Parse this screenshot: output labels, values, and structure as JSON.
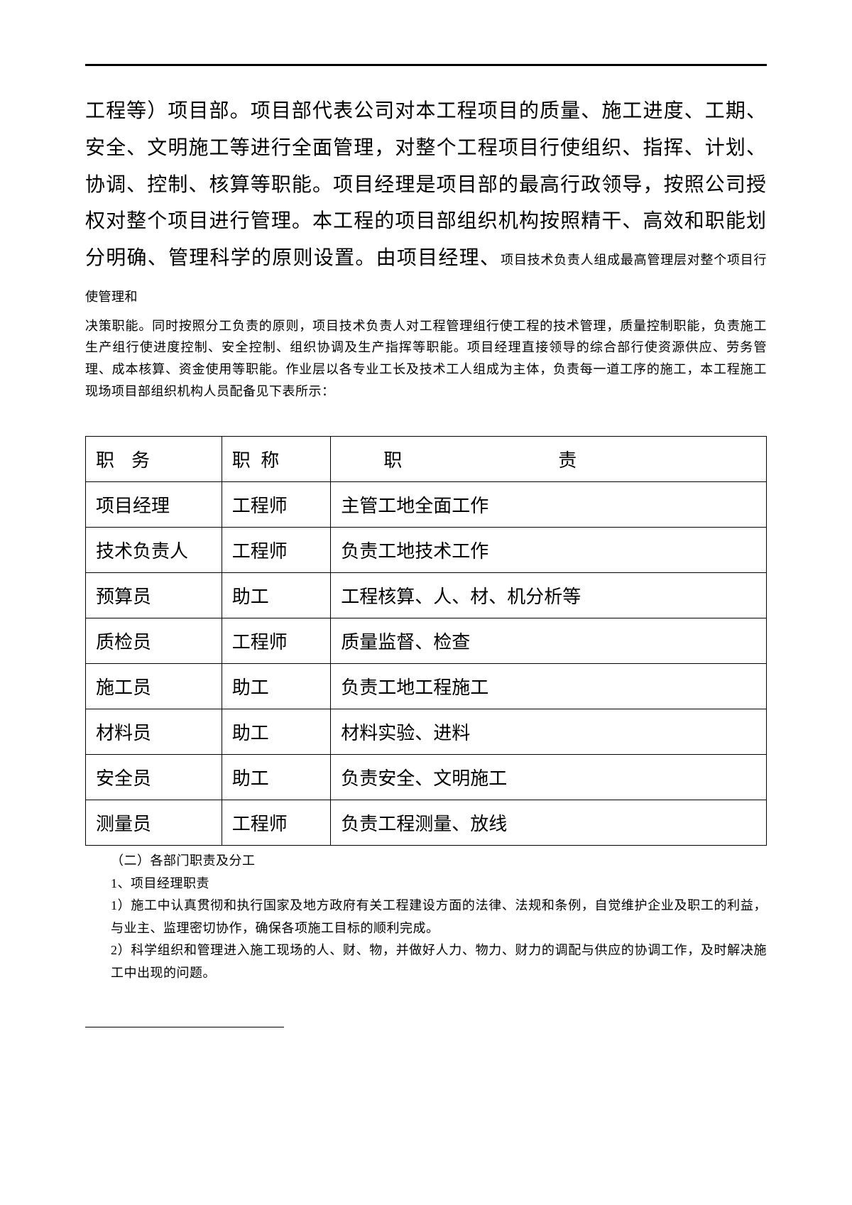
{
  "body": {
    "large_paragraph_part1": "工程等）项目部。项目部代表公司对本工程项目的质量、施工进度、工期、安全、文明施工等进行全面管理，对整个工程项目行使组织、指挥、计划、协调、控制、核算等职能。项目经理是项目部的最高行政领导，按照公司授权对整个项目进行管理。本工程的项目部组织机构按照精干、高效和职能划分明确、管理科学的原则设置。由项目经理、",
    "inline_small": "项目技术负责人组成最高管理层对整个项目行使管理和",
    "small_paragraph": "决策职能。同时按照分工负责的原则，项目技术负责人对工程管理组行使工程的技术管理，质量控制职能，负责施工生产组行使进度控制、安全控制、组织协调及生产指挥等职能。项目经理直接领导的综合部行使资源供应、劳务管理、成本核算、资金使用等职能。作业层以各专业工长及技术工人组成为主体，负责每一道工序的施工，本工程施工现场项目部组织机构人员配备见下表所示："
  },
  "table": {
    "headers": {
      "duty": "职务",
      "title": "职 称",
      "resp_zhi": "职",
      "resp_ze": "责"
    },
    "rows": [
      {
        "duty": "项目经理",
        "title": "工程师",
        "resp": "主管工地全面工作"
      },
      {
        "duty": "技术负责人",
        "title": "工程师",
        "resp": "负责工地技术工作"
      },
      {
        "duty": "预算员",
        "title": "助工",
        "resp": "工程核算、人、材、机分析等"
      },
      {
        "duty": "质检员",
        "title": "工程师",
        "resp": "质量监督、检查"
      },
      {
        "duty": "施工员",
        "title": "助工",
        "resp": "负责工地工程施工"
      },
      {
        "duty": "材料员",
        "title": "助工",
        "resp": "材料实验、进料"
      },
      {
        "duty": "安全员",
        "title": "助工",
        "resp": "负责安全、文明施工"
      },
      {
        "duty": "测量员",
        "title": "工程师",
        "resp": "负责工程测量、放线"
      }
    ]
  },
  "after_table": {
    "section_heading": "（二）各部门职责及分工",
    "sub_heading": "1、项目经理职责",
    "item1": "1）施工中认真贯彻和执行国家及地方政府有关工程建设方面的法律、法规和条例，自觉维护企业及职工的利益，与业主、监理密切协作，确保各项施工目标的顺利完成。",
    "item2": "2）科学组织和管理进入施工现场的人、财、物，并做好人力、物力、财力的调配与供应的协调工作，及时解决施工中出现的问题。"
  }
}
